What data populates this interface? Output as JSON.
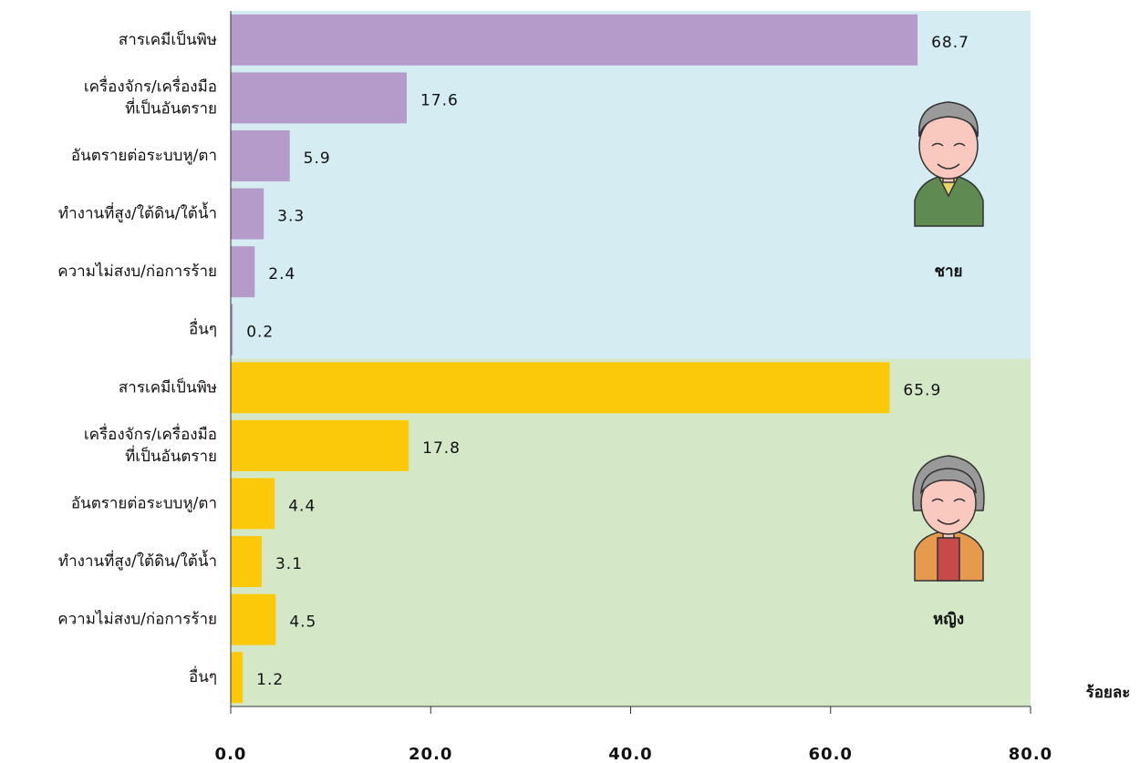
{
  "chart_data": {
    "type": "bar",
    "orientation": "horizontal",
    "x_label": "ร้อยละ",
    "xlim": [
      0,
      80
    ],
    "xticks": [
      {
        "value": 0,
        "label": "0.0"
      },
      {
        "value": 20,
        "label": "20.0"
      },
      {
        "value": 40,
        "label": "40.0"
      },
      {
        "value": 60,
        "label": "60.0"
      },
      {
        "value": 80,
        "label": "80.0"
      }
    ],
    "groups": [
      {
        "name": "ชาย",
        "color": "#b59bc9",
        "background": "#d4ecf2",
        "categories": [
          "สารเคมีเป็นพิษ",
          "เครื่องจักร/เครื่องมือ\nที่เป็นอันตราย",
          "อันตรายต่อระบบหู/ตา",
          "ทำงานที่สูง/ใต้ดิน/ใต้น้ำ",
          "ความไม่สงบ/ก่อการร้าย",
          "อื่นๆ"
        ],
        "values": [
          68.7,
          17.6,
          5.9,
          3.3,
          2.4,
          0.2
        ]
      },
      {
        "name": "หญิง",
        "color": "#fcc90a",
        "background": "#d4e8c8",
        "categories": [
          "สารเคมีเป็นพิษ",
          "เครื่องจักร/เครื่องมือ\nที่เป็นอันตราย",
          "อันตรายต่อระบบหู/ตา",
          "ทำงานที่สูง/ใต้ดิน/ใต้น้ำ",
          "ความไม่สงบ/ก่อการร้าย",
          "อื่นๆ"
        ],
        "values": [
          65.9,
          17.8,
          4.4,
          3.1,
          4.5,
          1.2
        ]
      }
    ]
  }
}
